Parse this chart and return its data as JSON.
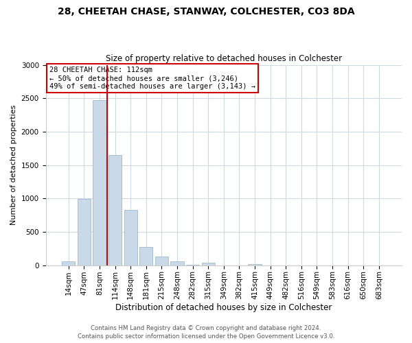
{
  "title1": "28, CHEETAH CHASE, STANWAY, COLCHESTER, CO3 8DA",
  "title2": "Size of property relative to detached houses in Colchester",
  "xlabel": "Distribution of detached houses by size in Colchester",
  "ylabel": "Number of detached properties",
  "bar_labels": [
    "14sqm",
    "47sqm",
    "81sqm",
    "114sqm",
    "148sqm",
    "181sqm",
    "215sqm",
    "248sqm",
    "282sqm",
    "315sqm",
    "349sqm",
    "382sqm",
    "415sqm",
    "449sqm",
    "482sqm",
    "516sqm",
    "549sqm",
    "583sqm",
    "616sqm",
    "650sqm",
    "683sqm"
  ],
  "bar_values": [
    55,
    990,
    2470,
    1650,
    830,
    270,
    130,
    55,
    5,
    35,
    0,
    0,
    20,
    0,
    0,
    0,
    0,
    0,
    0,
    0,
    0
  ],
  "bar_color": "#c9d9e8",
  "bar_edge_color": "#a8bfcf",
  "vline_color": "#cc0000",
  "vline_position": 2.5,
  "ylim": [
    0,
    3000
  ],
  "yticks": [
    0,
    500,
    1000,
    1500,
    2000,
    2500,
    3000
  ],
  "annotation_title": "28 CHEETAH CHASE: 112sqm",
  "annotation_line1": "← 50% of detached houses are smaller (3,246)",
  "annotation_line2": "49% of semi-detached houses are larger (3,143) →",
  "annotation_box_color": "#ffffff",
  "annotation_box_edge": "#cc0000",
  "footer1": "Contains HM Land Registry data © Crown copyright and database right 2024.",
  "footer2": "Contains public sector information licensed under the Open Government Licence v3.0.",
  "background_color": "#ffffff",
  "grid_color": "#d0d8e0",
  "title1_fontsize": 10,
  "title2_fontsize": 8.5,
  "ylabel_fontsize": 8,
  "xlabel_fontsize": 8.5,
  "tick_fontsize": 7.5,
  "annotation_fontsize": 7.5,
  "footer_fontsize": 6.2
}
